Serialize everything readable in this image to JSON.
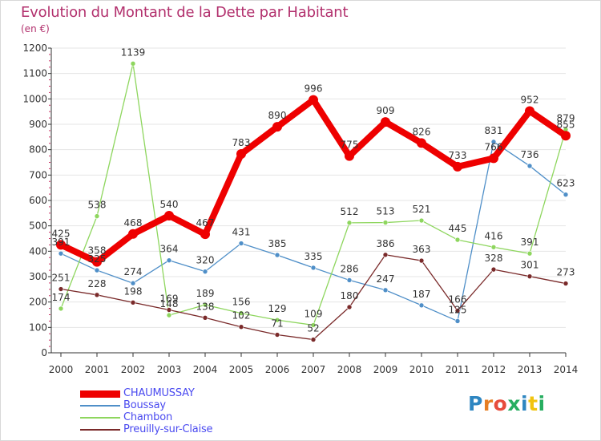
{
  "header": {
    "title": "Evolution du Montant de la Dette par Habitant",
    "unit": "(en €)"
  },
  "colors": {
    "title": "#b2306d",
    "axis": "#333333",
    "grid": "#e4e4e4",
    "legend_text": "#4a4af0"
  },
  "chart_data": {
    "type": "line",
    "title": "Evolution du Montant de la Dette par Habitant",
    "ylabel": "(en €)",
    "x": [
      "2000",
      "2001",
      "2002",
      "2003",
      "2004",
      "2005",
      "2006",
      "2007",
      "2008",
      "2009",
      "2010",
      "2011",
      "2012",
      "2013",
      "2014"
    ],
    "ylim": [
      0,
      1200
    ],
    "yticks": [
      0,
      100,
      200,
      300,
      400,
      500,
      600,
      700,
      800,
      900,
      1000,
      1100,
      1200
    ],
    "grid": true,
    "legend_position": "bottom-left",
    "series": [
      {
        "name": "CHAUMUSSAY",
        "color": "#ee0000",
        "values": [
          425,
          358,
          468,
          540,
          467,
          783,
          890,
          996,
          775,
          909,
          826,
          733,
          766,
          952,
          855
        ]
      },
      {
        "name": "Boussay",
        "color": "#4f8fc8",
        "values": [
          391,
          325,
          274,
          364,
          320,
          431,
          385,
          335,
          286,
          247,
          187,
          125,
          831,
          736,
          623
        ]
      },
      {
        "name": "Chambon",
        "color": "#8ed65e",
        "values": [
          174,
          538,
          1139,
          148,
          189,
          156,
          129,
          109,
          512,
          513,
          521,
          445,
          416,
          391,
          879
        ]
      },
      {
        "name": "Preuilly-sur-Claise",
        "color": "#7a2a2a",
        "values": [
          251,
          228,
          198,
          169,
          138,
          102,
          71,
          52,
          180,
          386,
          363,
          166,
          328,
          301,
          273
        ]
      }
    ],
    "data_labels": [
      [
        "425",
        "358",
        "468",
        "540",
        "467",
        "783",
        "890",
        "996",
        "775",
        "909",
        "826",
        "733",
        "766",
        "952",
        "855"
      ],
      [
        "391",
        "325",
        "274",
        "364",
        "320",
        "431",
        "385",
        "335",
        "286",
        "247",
        "187",
        "125",
        "831",
        "736",
        "623"
      ],
      [
        "174",
        "538",
        "1139",
        "148",
        "189",
        "156",
        "129",
        "109",
        "512",
        "513",
        "521",
        "445",
        "416",
        "391",
        "879"
      ],
      [
        "251",
        "228",
        "198",
        "169",
        "138",
        "102",
        "71",
        "52",
        "180",
        "386",
        "363",
        "166",
        "328",
        "301",
        "273"
      ]
    ]
  },
  "logo": {
    "letters": [
      "P",
      "r",
      "o",
      "x",
      "i",
      "t",
      "i"
    ],
    "colors": [
      "#2e86c1",
      "#e67e22",
      "#e74c3c",
      "#27ae60",
      "#2e86c1",
      "#f1c40f",
      "#27ae60"
    ]
  }
}
